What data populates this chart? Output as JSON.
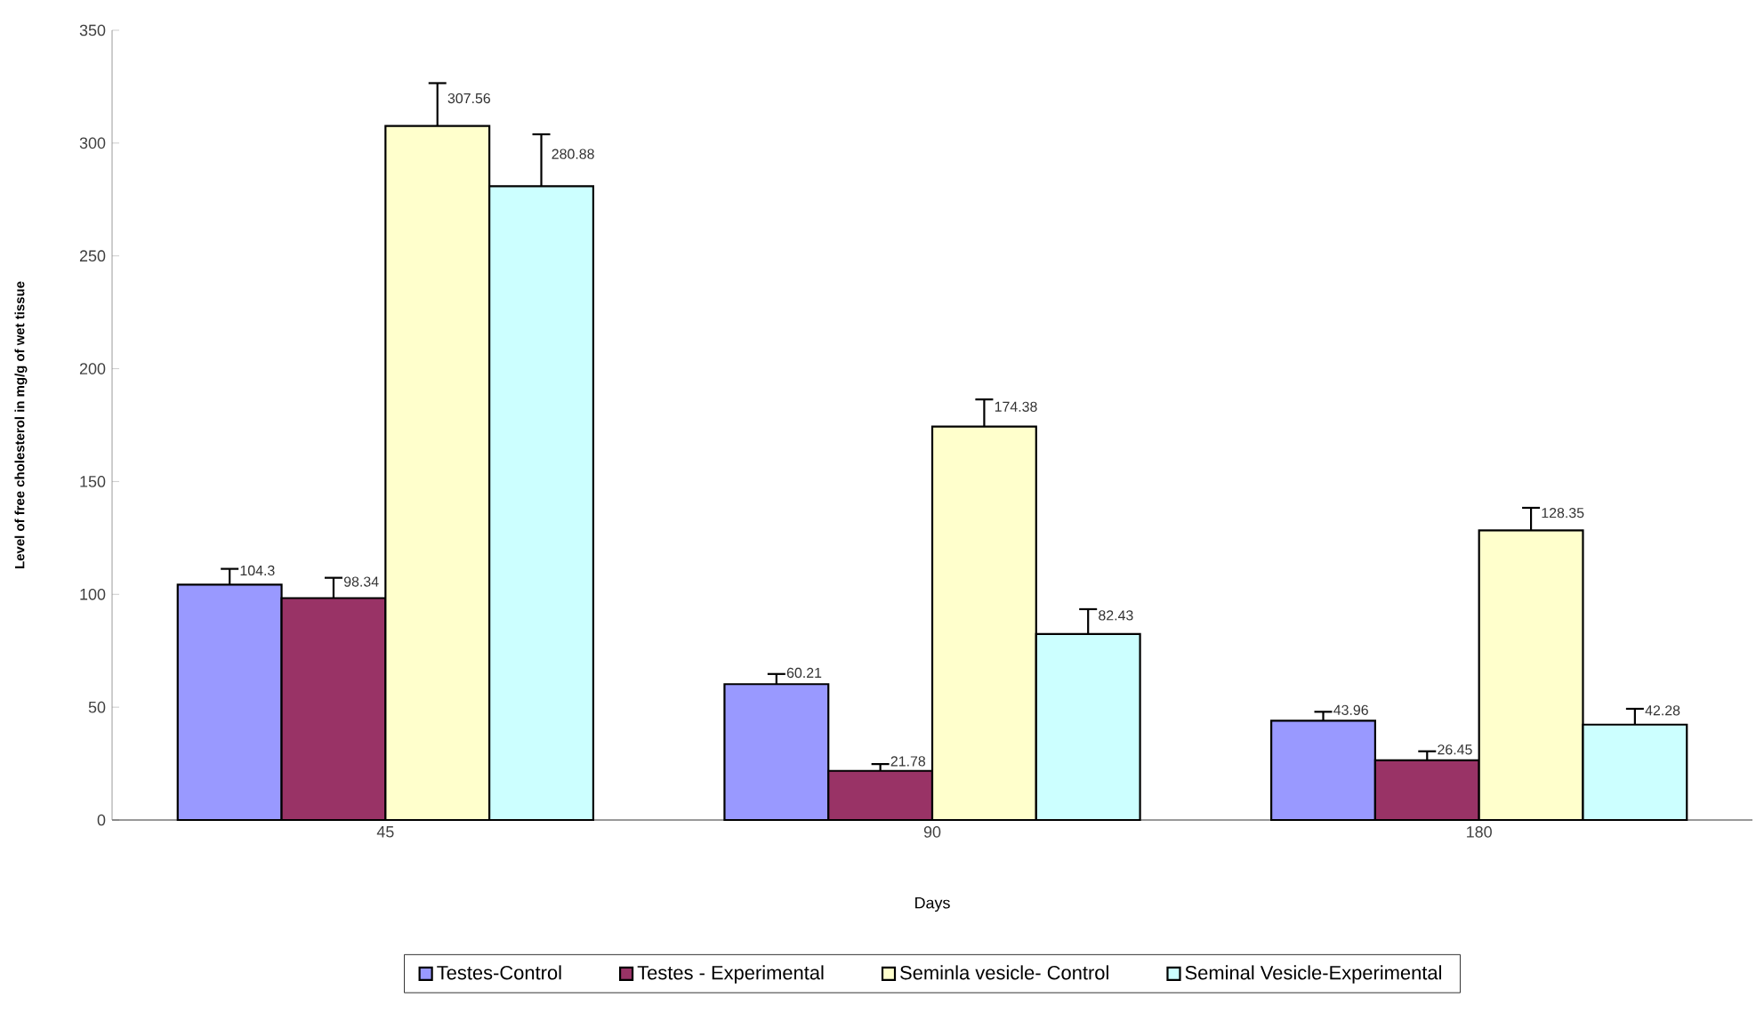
{
  "chart_data": {
    "type": "bar",
    "xlabel": "Days",
    "ylabel": "Level of free cholesterol in mg/g of wet tissue",
    "categories": [
      "45",
      "90",
      "180"
    ],
    "series": [
      {
        "name": "Testes-Control",
        "color": "#9999ff",
        "values": [
          104.3,
          60.21,
          43.96
        ],
        "errors": [
          7,
          4.5,
          4
        ]
      },
      {
        "name": "Testes - Experimental",
        "color": "#993366",
        "values": [
          98.34,
          21.78,
          26.45
        ],
        "errors": [
          9,
          3,
          4
        ]
      },
      {
        "name": "Seminla vesicle- Control",
        "color": "#ffffcc",
        "values": [
          307.56,
          174.38,
          128.35
        ],
        "errors": [
          19,
          12,
          10
        ]
      },
      {
        "name": "Seminal Vesicle-Experimental",
        "color": "#ccffff",
        "values": [
          280.88,
          82.43,
          42.28
        ],
        "errors": [
          23,
          11,
          7
        ]
      }
    ],
    "ylim": [
      0,
      350
    ],
    "yticks": [
      0,
      50,
      100,
      150,
      200,
      250,
      300,
      350
    ],
    "data_labels": true,
    "legend": "bottom",
    "grid": false
  }
}
